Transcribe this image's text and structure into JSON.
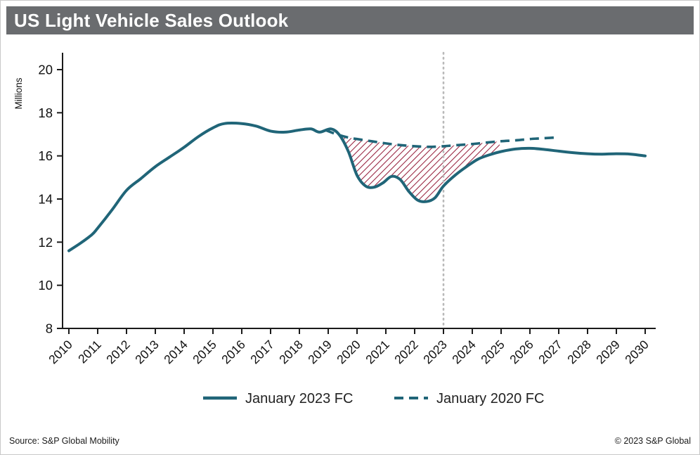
{
  "header": {
    "title": "US Light Vehicle Sales Outlook"
  },
  "footer": {
    "source": "Source: S&P Global Mobility",
    "copyright": "© 2023 S&P Global"
  },
  "chart_data": {
    "type": "line",
    "title": "US Light Vehicle Sales Outlook",
    "xlabel": "",
    "ylabel": "Millions",
    "ylim": [
      8,
      20
    ],
    "yticks": [
      8,
      10,
      12,
      14,
      16,
      18,
      20
    ],
    "xticks": [
      2010,
      2011,
      2012,
      2013,
      2014,
      2015,
      2016,
      2017,
      2018,
      2019,
      2020,
      2021,
      2022,
      2023,
      2024,
      2025,
      2026,
      2027,
      2028,
      2029,
      2030
    ],
    "grid": false,
    "legend_position": "bottom-center",
    "colors": {
      "line": "#206578",
      "hatch": "#96203d",
      "marker_line": "#b9b9b9",
      "axis": "#1a1a1a",
      "titlebar": "#6a6c6f"
    },
    "vertical_marker": {
      "x": 2023,
      "style": "dotted"
    },
    "series": [
      {
        "name": "January 2023 FC",
        "style": "solid",
        "points": [
          [
            2010.0,
            11.6
          ],
          [
            2010.4,
            11.95
          ],
          [
            2010.8,
            12.35
          ],
          [
            2011.0,
            12.65
          ],
          [
            2011.5,
            13.5
          ],
          [
            2012.0,
            14.4
          ],
          [
            2012.5,
            14.95
          ],
          [
            2013.0,
            15.5
          ],
          [
            2013.5,
            15.95
          ],
          [
            2014.0,
            16.4
          ],
          [
            2014.5,
            16.9
          ],
          [
            2015.0,
            17.3
          ],
          [
            2015.4,
            17.5
          ],
          [
            2016.0,
            17.5
          ],
          [
            2016.5,
            17.38
          ],
          [
            2017.0,
            17.15
          ],
          [
            2017.5,
            17.1
          ],
          [
            2018.0,
            17.2
          ],
          [
            2018.4,
            17.25
          ],
          [
            2018.7,
            17.1
          ],
          [
            2019.1,
            17.25
          ],
          [
            2019.4,
            16.95
          ],
          [
            2019.7,
            16.2
          ],
          [
            2020.0,
            15.1
          ],
          [
            2020.3,
            14.6
          ],
          [
            2020.6,
            14.55
          ],
          [
            2020.9,
            14.75
          ],
          [
            2021.2,
            15.05
          ],
          [
            2021.5,
            14.9
          ],
          [
            2021.8,
            14.35
          ],
          [
            2022.1,
            13.95
          ],
          [
            2022.4,
            13.88
          ],
          [
            2022.7,
            14.05
          ],
          [
            2023.0,
            14.6
          ],
          [
            2023.4,
            15.1
          ],
          [
            2023.8,
            15.5
          ],
          [
            2024.2,
            15.85
          ],
          [
            2024.6,
            16.05
          ],
          [
            2025.0,
            16.2
          ],
          [
            2025.5,
            16.32
          ],
          [
            2026.0,
            16.35
          ],
          [
            2026.5,
            16.3
          ],
          [
            2027.0,
            16.22
          ],
          [
            2027.5,
            16.15
          ],
          [
            2028.0,
            16.1
          ],
          [
            2028.5,
            16.08
          ],
          [
            2029.0,
            16.1
          ],
          [
            2029.5,
            16.08
          ],
          [
            2030.0,
            16.0
          ]
        ]
      },
      {
        "name": "January 2020 FC",
        "style": "dashed",
        "points": [
          [
            2018.9,
            17.2
          ],
          [
            2019.3,
            17.0
          ],
          [
            2019.7,
            16.85
          ],
          [
            2020.0,
            16.78
          ],
          [
            2020.5,
            16.68
          ],
          [
            2021.0,
            16.58
          ],
          [
            2021.5,
            16.5
          ],
          [
            2022.0,
            16.45
          ],
          [
            2022.5,
            16.42
          ],
          [
            2023.0,
            16.45
          ],
          [
            2023.5,
            16.5
          ],
          [
            2024.0,
            16.55
          ],
          [
            2024.5,
            16.62
          ],
          [
            2025.0,
            16.68
          ],
          [
            2025.5,
            16.72
          ],
          [
            2026.0,
            16.78
          ],
          [
            2026.5,
            16.82
          ],
          [
            2027.0,
            16.86
          ]
        ]
      }
    ],
    "gap_shading": {
      "between": [
        "January 2020 FC",
        "January 2023 FC"
      ],
      "x_range": [
        2019.45,
        2025.0
      ],
      "pattern": "diagonal-hatch"
    },
    "legend": [
      {
        "label": "January 2023 FC",
        "style": "solid"
      },
      {
        "label": "January 2020 FC",
        "style": "dashed"
      }
    ]
  }
}
